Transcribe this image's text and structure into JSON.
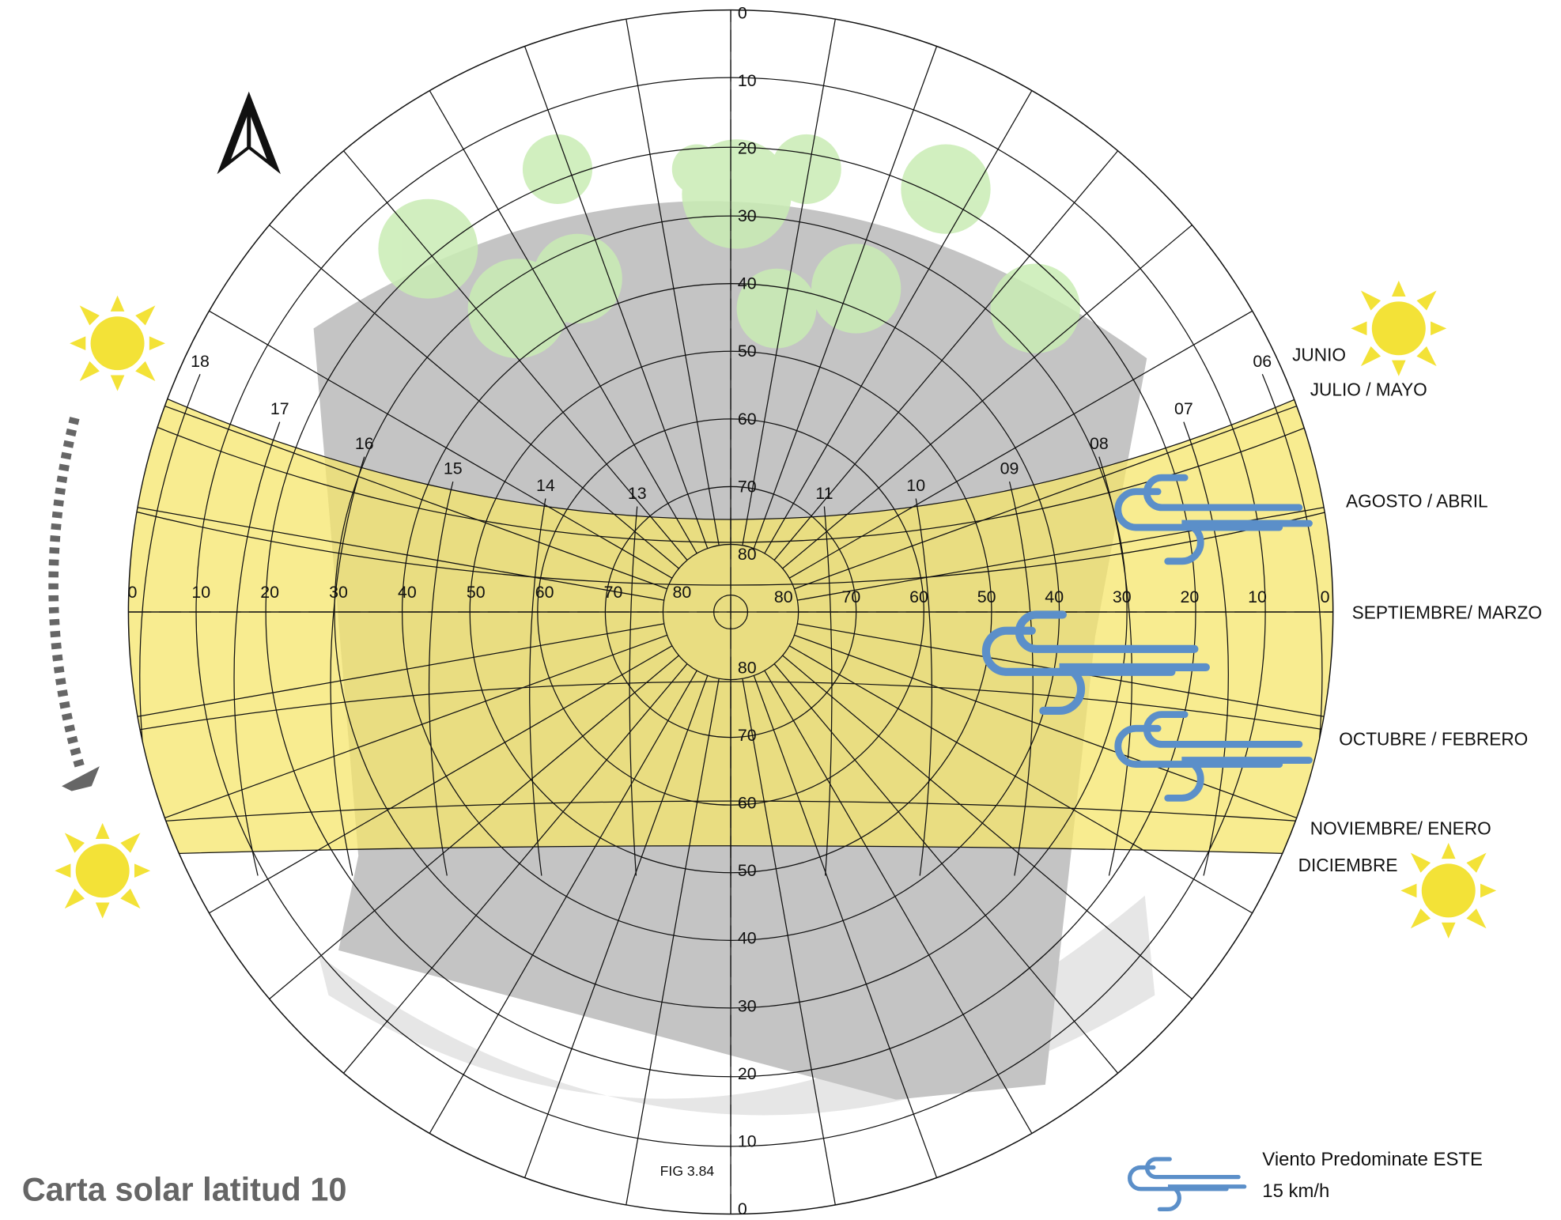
{
  "title": "Carta solar latitud 10",
  "figure": "FIG 3.84",
  "legend": {
    "label": "Viento Predominate ESTE",
    "speed": "15 km/h"
  },
  "months": [
    "JUNIO",
    "JULIO / MAYO",
    "AGOSTO / ABRIL",
    "SEPTIEMBRE/ MARZO",
    "OCTUBRE / FEBRERO",
    "NOVIEMBRE/ ENERO",
    "DICIEMBRE"
  ],
  "hours": [
    "18",
    "17",
    "16",
    "15",
    "14",
    "13",
    "11",
    "10",
    "09",
    "08",
    "07",
    "06"
  ],
  "altitude_top": [
    "0",
    "10",
    "20",
    "30",
    "40",
    "50",
    "60",
    "70",
    "80"
  ],
  "altitude_bottom": [
    "80",
    "70",
    "60",
    "50",
    "40",
    "30",
    "20",
    "10",
    "0"
  ],
  "altitude_left": [
    "0",
    "10",
    "20",
    "30",
    "40",
    "50",
    "60",
    "70",
    "80"
  ],
  "altitude_right": [
    "80",
    "70",
    "60",
    "50",
    "40",
    "30",
    "20",
    "10",
    "0"
  ]
}
